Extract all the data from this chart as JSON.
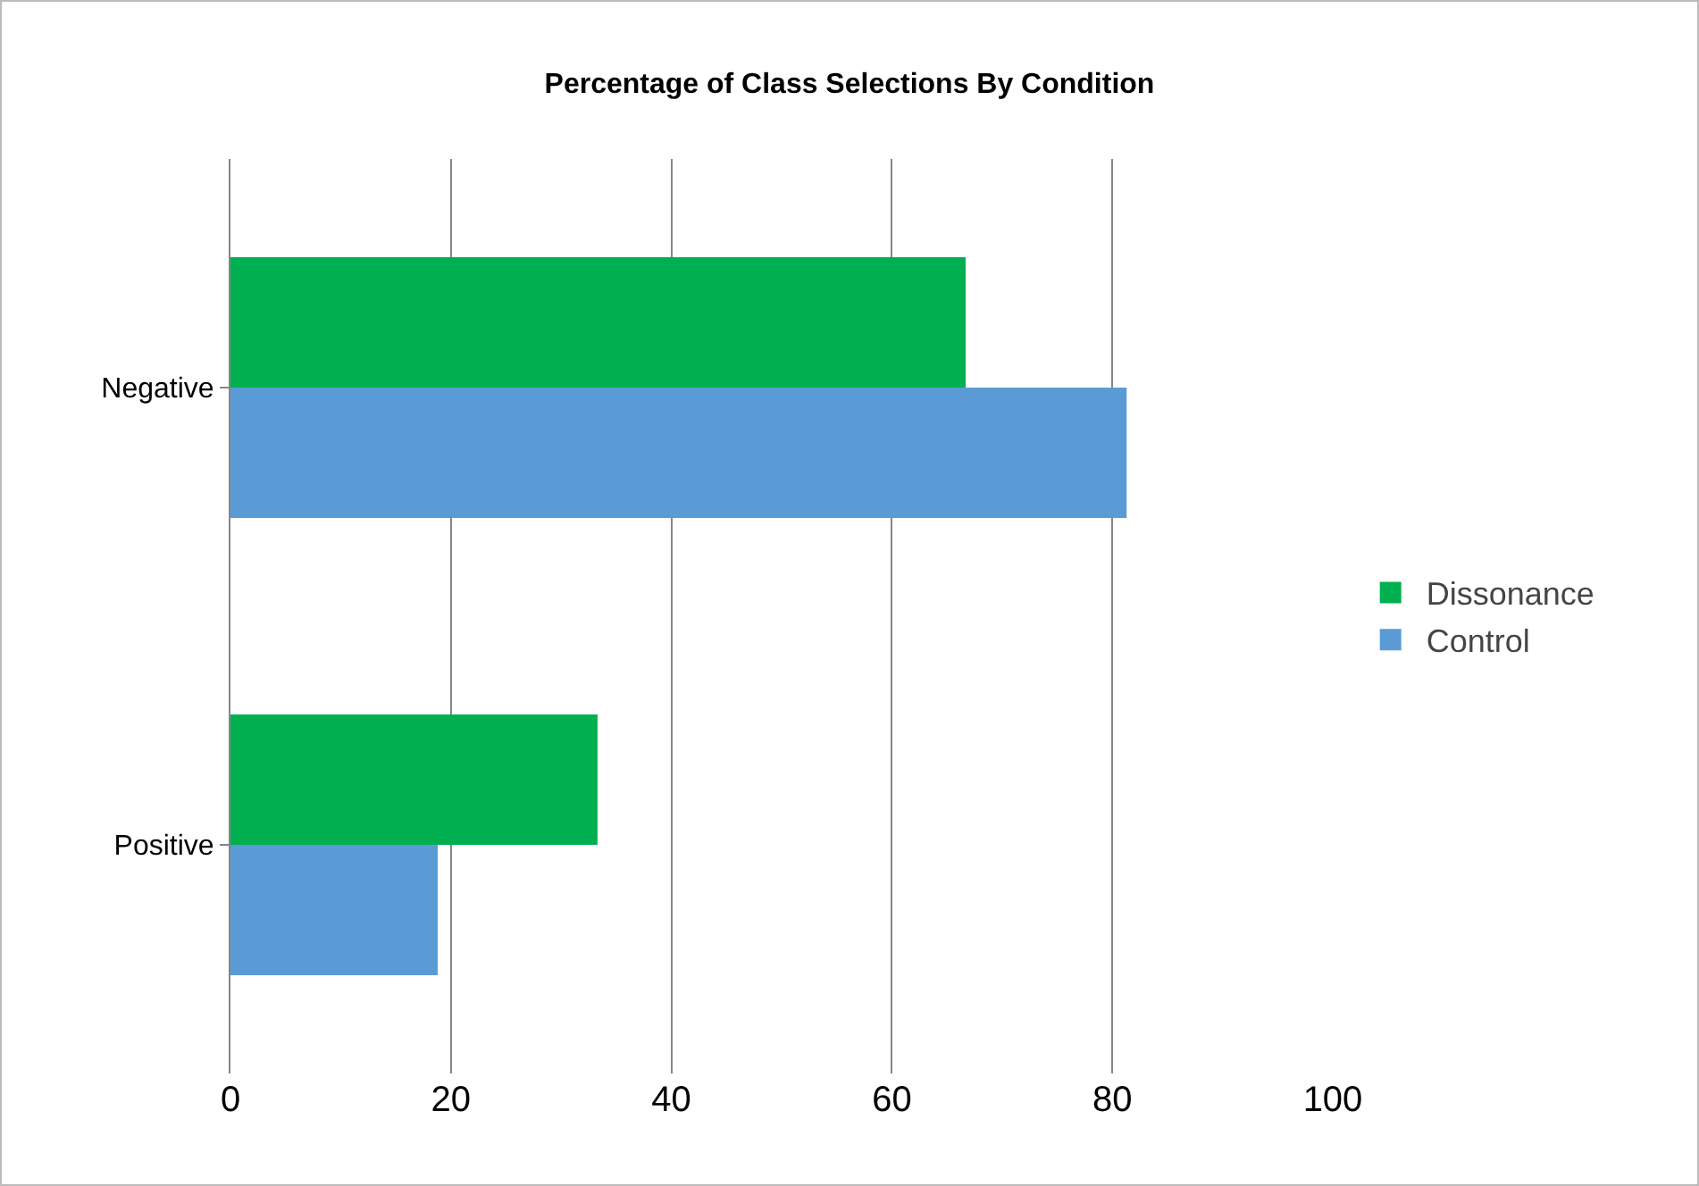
{
  "chart_data": {
    "type": "bar",
    "orientation": "horizontal",
    "title": "Percentage of Class Selections By Condition",
    "categories": [
      "Negative",
      "Positive"
    ],
    "series": [
      {
        "name": "Dissonance",
        "color": "#00b050",
        "values": [
          66.7,
          33.3
        ]
      },
      {
        "name": "Control",
        "color": "#5b9bd5",
        "values": [
          81.3,
          18.8
        ]
      }
    ],
    "xlim": [
      0,
      100
    ],
    "xticks": [
      0,
      20,
      40,
      60,
      80,
      100
    ],
    "grid": "x",
    "legend": "right"
  }
}
